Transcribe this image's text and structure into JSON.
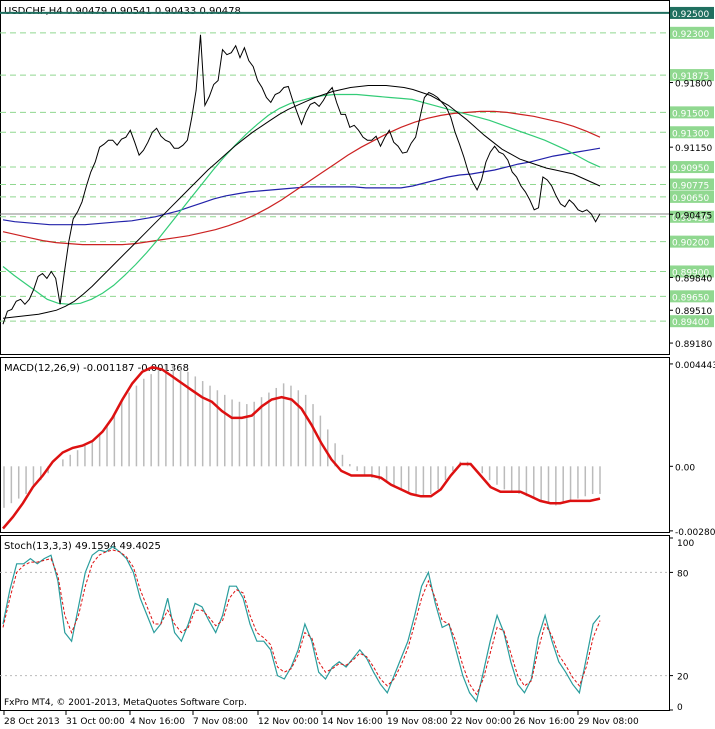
{
  "chart_data": {
    "type": "line",
    "symbol_header": "USDCHF,H4  0.90479 0.90541 0.90433 0.90478",
    "price_panel": {
      "ylim": [
        0.8907,
        0.9262
      ],
      "price_ticks": [
        "0.91800",
        "0.91150",
        "0.90475",
        "0.89840",
        "0.89510",
        "0.89180"
      ],
      "levels": [
        {
          "label": "0.92500",
          "value": 0.925,
          "color": "#1f6f5f",
          "style": "solid",
          "boxed": true
        },
        {
          "label": "0.92300",
          "value": 0.923,
          "color": "#90d890",
          "style": "dashed",
          "boxed": true
        },
        {
          "label": "0.91875",
          "value": 0.91875,
          "color": "#90d890",
          "style": "dashed",
          "boxed": true
        },
        {
          "label": "0.91500",
          "value": 0.915,
          "color": "#90d890",
          "style": "dashed",
          "boxed": true
        },
        {
          "label": "0.91300",
          "value": 0.913,
          "color": "#90d890",
          "style": "dashed",
          "boxed": true
        },
        {
          "label": "0.90950",
          "value": 0.9095,
          "color": "#90d890",
          "style": "dashed",
          "boxed": true
        },
        {
          "label": "0.90775",
          "value": 0.90775,
          "color": "#90d890",
          "style": "dashed",
          "boxed": true
        },
        {
          "label": "0.90650",
          "value": 0.9065,
          "color": "#90d890",
          "style": "dashed",
          "boxed": true
        },
        {
          "label": "0.90450",
          "value": 0.9045,
          "color": "#90d890",
          "style": "dashed",
          "boxed": true
        },
        {
          "label": "0.90200",
          "value": 0.902,
          "color": "#90d890",
          "style": "dashed",
          "boxed": true
        },
        {
          "label": "0.89900",
          "value": 0.899,
          "color": "#90d890",
          "style": "dashed",
          "boxed": true
        },
        {
          "label": "0.89650",
          "value": 0.8965,
          "color": "#90d890",
          "style": "dashed",
          "boxed": true
        },
        {
          "label": "0.89400",
          "value": 0.894,
          "color": "#90d890",
          "style": "dashed",
          "boxed": true
        }
      ],
      "current_price_line": 0.90478,
      "price_series": [
        0.8937,
        0.895,
        0.8952,
        0.896,
        0.8962,
        0.8957,
        0.8962,
        0.8972,
        0.8985,
        0.8988,
        0.8983,
        0.899,
        0.8983,
        0.8957,
        0.899,
        0.902,
        0.9043,
        0.905,
        0.906,
        0.9076,
        0.909,
        0.91,
        0.9115,
        0.9118,
        0.9122,
        0.9122,
        0.9117,
        0.9123,
        0.9125,
        0.9132,
        0.912,
        0.9107,
        0.9112,
        0.912,
        0.913,
        0.9134,
        0.9126,
        0.9122,
        0.912,
        0.9114,
        0.9114,
        0.9117,
        0.9122,
        0.9145,
        0.9172,
        0.9228,
        0.9157,
        0.9166,
        0.9178,
        0.9182,
        0.9213,
        0.9208,
        0.921,
        0.9217,
        0.9205,
        0.9215,
        0.9202,
        0.9196,
        0.9182,
        0.9175,
        0.9165,
        0.916,
        0.9168,
        0.917,
        0.9175,
        0.9176,
        0.9162,
        0.915,
        0.9138,
        0.915,
        0.9158,
        0.916,
        0.9156,
        0.9162,
        0.917,
        0.9175,
        0.916,
        0.9148,
        0.9148,
        0.9135,
        0.9137,
        0.9132,
        0.9125,
        0.9122,
        0.9122,
        0.9126,
        0.9116,
        0.9125,
        0.9132,
        0.912,
        0.9116,
        0.9109,
        0.911,
        0.9119,
        0.9125,
        0.9145,
        0.9165,
        0.917,
        0.9168,
        0.9165,
        0.916,
        0.9155,
        0.9145,
        0.913,
        0.9118,
        0.9105,
        0.909,
        0.908,
        0.9072,
        0.9082,
        0.91,
        0.911,
        0.9116,
        0.911,
        0.9108,
        0.9102,
        0.909,
        0.9085,
        0.9076,
        0.907,
        0.9062,
        0.9052,
        0.9054,
        0.9085,
        0.9082,
        0.9076,
        0.9066,
        0.9058,
        0.9055,
        0.9062,
        0.9058,
        0.9052,
        0.905,
        0.9052,
        0.9048,
        0.904,
        0.9048
      ],
      "sma_black": [
        0.8943,
        0.8944,
        0.8945,
        0.8946,
        0.8947,
        0.8949,
        0.8951,
        0.8955,
        0.896,
        0.8967,
        0.8975,
        0.8984,
        0.8993,
        0.9002,
        0.9011,
        0.902,
        0.9029,
        0.9038,
        0.9047,
        0.9056,
        0.9065,
        0.9074,
        0.9083,
        0.9092,
        0.91,
        0.9108,
        0.9116,
        0.9123,
        0.913,
        0.9136,
        0.9142,
        0.9148,
        0.9153,
        0.9157,
        0.9161,
        0.9165,
        0.9168,
        0.9171,
        0.9173,
        0.9175,
        0.9176,
        0.9177,
        0.9177,
        0.9177,
        0.9176,
        0.9175,
        0.9173,
        0.917,
        0.9167,
        0.9162,
        0.9157,
        0.915,
        0.9143,
        0.9135,
        0.9127,
        0.912,
        0.9113,
        0.9108,
        0.9103,
        0.91,
        0.9097,
        0.9094,
        0.9092,
        0.909,
        0.9088,
        0.9084,
        0.908,
        0.9076
      ],
      "sma_green": [
        0.8995,
        0.8986,
        0.8978,
        0.897,
        0.8962,
        0.8958,
        0.8957,
        0.8958,
        0.8962,
        0.8968,
        0.8976,
        0.8986,
        0.8997,
        0.9009,
        0.9022,
        0.9036,
        0.905,
        0.9064,
        0.9078,
        0.9092,
        0.9105,
        0.9117,
        0.9128,
        0.9138,
        0.9147,
        0.9154,
        0.9159,
        0.9162,
        0.9165,
        0.9167,
        0.9168,
        0.9168,
        0.9168,
        0.9167,
        0.9166,
        0.9165,
        0.9164,
        0.9163,
        0.916,
        0.9157,
        0.9154,
        0.9151,
        0.9148,
        0.9145,
        0.9142,
        0.9138,
        0.9134,
        0.913,
        0.9126,
        0.9122,
        0.9117,
        0.9112,
        0.9106,
        0.91,
        0.9095
      ],
      "sma_red": [
        0.903,
        0.9027,
        0.9024,
        0.9021,
        0.9019,
        0.9018,
        0.9017,
        0.9017,
        0.9017,
        0.9017,
        0.9018,
        0.902,
        0.9022,
        0.9024,
        0.9026,
        0.9029,
        0.9032,
        0.9036,
        0.9041,
        0.9047,
        0.9054,
        0.9062,
        0.9071,
        0.908,
        0.9089,
        0.9098,
        0.9107,
        0.9115,
        0.9122,
        0.9129,
        0.9135,
        0.914,
        0.9144,
        0.9147,
        0.9149,
        0.915,
        0.9151,
        0.9151,
        0.915,
        0.9148,
        0.9146,
        0.9143,
        0.914,
        0.9136,
        0.9131,
        0.9125
      ],
      "sma_blue": [
        0.9042,
        0.904,
        0.9039,
        0.9038,
        0.9037,
        0.9037,
        0.9037,
        0.9037,
        0.9038,
        0.9039,
        0.904,
        0.9041,
        0.9043,
        0.9045,
        0.9048,
        0.9051,
        0.9055,
        0.9059,
        0.9063,
        0.9066,
        0.9068,
        0.907,
        0.9071,
        0.9072,
        0.9073,
        0.9074,
        0.9075,
        0.9075,
        0.9075,
        0.9075,
        0.9075,
        0.9074,
        0.9074,
        0.9074,
        0.9074,
        0.9076,
        0.9079,
        0.9082,
        0.9085,
        0.9087,
        0.9088,
        0.909,
        0.9092,
        0.9095,
        0.9098,
        0.91,
        0.9103,
        0.9106,
        0.9108,
        0.911,
        0.9112,
        0.9114
      ]
    },
    "macd_panel": {
      "title": "MACD(12,26,9) -0.001187 -0.001368",
      "ylim": [
        -0.00285,
        0.0047
      ],
      "ticks": [
        {
          "label": "0.004443",
          "value": 0.004443
        },
        {
          "label": "0.00",
          "value": 0
        },
        {
          "label": "-0.002801",
          "value": -0.002801
        }
      ],
      "histogram": [
        -0.0018,
        -0.0016,
        -0.0014,
        -0.0012,
        -0.0009,
        -0.0006,
        -0.0003,
        0.0,
        0.0003,
        0.0005,
        0.0007,
        0.0009,
        0.0011,
        0.0014,
        0.0018,
        0.0023,
        0.0028,
        0.0032,
        0.0035,
        0.0038,
        0.004,
        0.0042,
        0.0044,
        0.0044,
        0.0043,
        0.0041,
        0.0039,
        0.0037,
        0.0035,
        0.0033,
        0.0031,
        0.0029,
        0.0028,
        0.0027,
        0.0028,
        0.003,
        0.0032,
        0.0034,
        0.0036,
        0.0035,
        0.0033,
        0.0031,
        0.0027,
        0.0022,
        0.0016,
        0.001,
        0.0005,
        0.0001,
        -0.0002,
        -0.0004,
        -0.0005,
        -0.0006,
        -0.0007,
        -0.0009,
        -0.001,
        -0.0011,
        -0.0012,
        -0.0013,
        -0.0012,
        -0.001,
        -0.0006,
        -0.0002,
        0.0002,
        0.0002,
        0.0,
        -0.0003,
        -0.0006,
        -0.0008,
        -0.001,
        -0.0011,
        -0.0012,
        -0.0013,
        -0.0014,
        -0.0015,
        -0.0016,
        -0.0017,
        -0.0016,
        -0.0015,
        -0.0014,
        -0.0013,
        -0.0012,
        -0.0012
      ],
      "signal": [
        -0.0027,
        -0.0022,
        -0.0016,
        -0.0009,
        -0.0004,
        0.0002,
        0.0006,
        0.0008,
        0.0009,
        0.0011,
        0.0015,
        0.0021,
        0.0029,
        0.0036,
        0.0041,
        0.0043,
        0.0042,
        0.0039,
        0.0036,
        0.0033,
        0.003,
        0.0028,
        0.0024,
        0.0021,
        0.0021,
        0.0022,
        0.0026,
        0.0029,
        0.003,
        0.0029,
        0.0025,
        0.0018,
        0.001,
        0.0003,
        -0.0002,
        -0.0004,
        -0.0004,
        -0.0004,
        -0.0005,
        -0.0008,
        -0.001,
        -0.0012,
        -0.0013,
        -0.0013,
        -0.001,
        -0.0004,
        0.0001,
        0.0001,
        -0.0004,
        -0.0009,
        -0.0011,
        -0.0011,
        -0.0011,
        -0.0013,
        -0.0015,
        -0.0016,
        -0.0016,
        -0.0015,
        -0.0015,
        -0.0015,
        -0.0014
      ]
    },
    "stoch_panel": {
      "title": "Stoch(13,3,3) 49.1594 49.4025",
      "ylim": [
        0,
        100
      ],
      "ticks": [
        {
          "label": "100",
          "value": 100
        },
        {
          "label": "80",
          "value": 80
        },
        {
          "label": "20",
          "value": 20
        },
        {
          "label": "0",
          "value": 0
        }
      ],
      "main": [
        50,
        70,
        85,
        85,
        88,
        85,
        88,
        90,
        75,
        45,
        40,
        60,
        80,
        90,
        93,
        92,
        95,
        92,
        88,
        80,
        65,
        55,
        45,
        50,
        65,
        45,
        40,
        50,
        62,
        60,
        52,
        45,
        55,
        72,
        72,
        65,
        50,
        40,
        40,
        35,
        20,
        18,
        25,
        35,
        50,
        40,
        22,
        18,
        25,
        28,
        25,
        30,
        35,
        30,
        22,
        15,
        10,
        20,
        30,
        40,
        55,
        72,
        80,
        62,
        48,
        50,
        35,
        20,
        10,
        5,
        22,
        40,
        55,
        45,
        28,
        15,
        10,
        18,
        42,
        55,
        40,
        28,
        22,
        15,
        10,
        30,
        50,
        55
      ],
      "signal": [
        48,
        65,
        80,
        84,
        86,
        86,
        87,
        88,
        78,
        55,
        45,
        55,
        72,
        85,
        90,
        92,
        93,
        92,
        89,
        83,
        70,
        60,
        50,
        50,
        58,
        50,
        45,
        48,
        58,
        58,
        54,
        49,
        52,
        65,
        70,
        68,
        55,
        45,
        42,
        38,
        25,
        22,
        24,
        32,
        45,
        42,
        28,
        22,
        24,
        27,
        26,
        29,
        33,
        31,
        25,
        18,
        14,
        18,
        26,
        36,
        50,
        65,
        75,
        65,
        52,
        50,
        40,
        26,
        15,
        9,
        18,
        33,
        48,
        46,
        33,
        20,
        14,
        17,
        35,
        50,
        43,
        32,
        26,
        19,
        14,
        25,
        42,
        52
      ]
    },
    "x_tick_labels": [
      "28 Oct 2013",
      "31 Oct 00:00",
      "4 Nov 16:00",
      "7 Nov 08:00",
      "12 Nov 00:00",
      "14 Nov 16:00",
      "19 Nov 08:00",
      "22 Nov 00:00",
      "26 Nov 16:00",
      "29 Nov 08:00"
    ],
    "watermark": "FxPro MT4, © 2001-2013, MetaQuotes Software Corp.",
    "colors": {
      "price": "#000000",
      "sma_black": "#000000",
      "sma_green": "#33cc77",
      "sma_red": "#cc2222",
      "sma_blue": "#2222aa",
      "macd_hist": "#bbbbbb",
      "macd_signal": "#dd1111",
      "stoch_main": "#2a9d9d",
      "stoch_signal": "#dd1111",
      "grid": "#90d890",
      "axis_text": "#000000"
    }
  }
}
